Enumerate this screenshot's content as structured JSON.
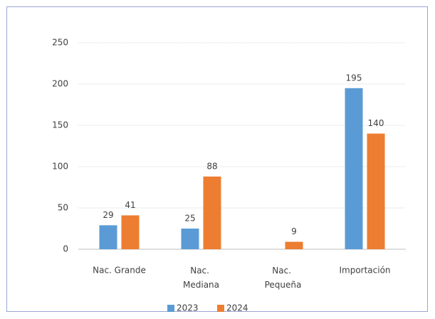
{
  "chart_data": {
    "type": "bar",
    "categories": [
      "Nac. Grande",
      "Nac. Mediana",
      "Nac. Pequeña",
      "Importación"
    ],
    "series": [
      {
        "name": "2023",
        "color": "#5b9bd5",
        "values": [
          29,
          25,
          null,
          195
        ]
      },
      {
        "name": "2024",
        "color": "#ed7d31",
        "values": [
          41,
          88,
          9,
          140
        ]
      }
    ],
    "ylim": [
      0,
      250
    ],
    "yticks": [
      0,
      50,
      100,
      150,
      200,
      250
    ],
    "grid": true,
    "legend": "bottom"
  }
}
